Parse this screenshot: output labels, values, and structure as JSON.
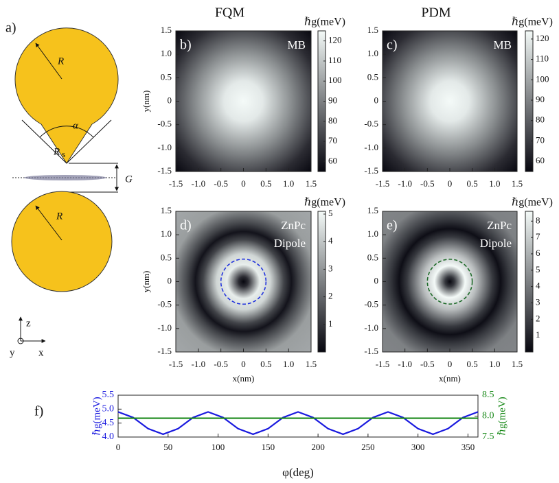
{
  "panel_a": {
    "label": "a)",
    "radius_top": "R",
    "angle": "α",
    "tip_radius": "R",
    "tip_radius_sub": "s",
    "gap": "G",
    "radius_bottom": "R",
    "axes": {
      "z": "z",
      "x": "x",
      "y": "y"
    }
  },
  "chart_data": [
    {
      "type": "heatmap",
      "label": "b)",
      "column_title": "FQM",
      "colorbar_label": "ℏg(meV)",
      "annotation": [
        "MB"
      ],
      "ylabel": "y(nm)",
      "xlim": [
        -1.5,
        1.5
      ],
      "ylim": [
        -1.5,
        1.5
      ],
      "xticks": [
        -1.5,
        {
          "value": -1,
          "label": "-1.0"
        },
        -0.5,
        0,
        0.5,
        {
          "value": 1,
          "label": "1.0"
        },
        1.5
      ],
      "yticks": [
        -1.5,
        {
          "value": -1,
          "label": "-1.0"
        },
        -0.5,
        0,
        0.5,
        {
          "value": 1,
          "label": "1.0"
        },
        1.5
      ],
      "clim": [
        55,
        125
      ],
      "cticks": [
        60,
        70,
        80,
        90,
        100,
        110,
        120
      ],
      "colormap": [
        "#07070f",
        "#f4faf8"
      ]
    },
    {
      "type": "heatmap",
      "label": "c)",
      "column_title": "PDM",
      "colorbar_label": "ℏg(meV)",
      "annotation": [
        "MB"
      ],
      "xlim": [
        -1.5,
        1.5
      ],
      "ylim": [
        -1.5,
        1.5
      ],
      "xticks": [
        -1.5,
        {
          "value": -1,
          "label": "-1.0"
        },
        -0.5,
        0,
        0.5,
        {
          "value": 1,
          "label": "1.0"
        },
        1.5
      ],
      "yticks": [
        -1.5,
        {
          "value": -1,
          "label": "-1.0"
        },
        -0.5,
        0,
        0.5,
        {
          "value": 1,
          "label": "1.0"
        },
        1.5
      ],
      "clim": [
        55,
        124
      ],
      "cticks": [
        60,
        70,
        80,
        90,
        100,
        110,
        120
      ],
      "colormap": [
        "#07070f",
        "#f4faf8"
      ]
    },
    {
      "type": "heatmap",
      "label": "d)",
      "colorbar_label": "ℏg(meV)",
      "annotation": [
        "ZnPc",
        "Dipole"
      ],
      "ylabel": "y(nm)",
      "xlabel": "x(nm)",
      "xlim": [
        -1.5,
        1.5
      ],
      "ylim": [
        -1.5,
        1.5
      ],
      "xticks": [
        -1.5,
        {
          "value": -1,
          "label": "-1.0"
        },
        -0.5,
        0,
        0.5,
        {
          "value": 1,
          "label": "1.0"
        },
        1.5
      ],
      "yticks": [
        -1.5,
        {
          "value": -1,
          "label": "-1.0"
        },
        -0.5,
        0,
        0.5,
        {
          "value": 1,
          "label": "1.0"
        },
        1.5
      ],
      "clim": [
        0,
        5.1
      ],
      "cticks": [
        1,
        2,
        3,
        4,
        5
      ],
      "colormap": [
        "#07070f",
        "#f4faf8"
      ],
      "circle_radius": 0.5,
      "circle_color": "#2233dd"
    },
    {
      "type": "heatmap",
      "label": "e)",
      "colorbar_label": "ℏg(meV)",
      "annotation": [
        "ZnPc",
        "Dipole"
      ],
      "xlabel": "x(nm)",
      "xlim": [
        -1.5,
        1.5
      ],
      "ylim": [
        -1.5,
        1.5
      ],
      "xticks": [
        -1.5,
        {
          "value": -1,
          "label": "-1.0"
        },
        -0.5,
        0,
        0.5,
        {
          "value": 1,
          "label": "1.0"
        },
        1.5
      ],
      "yticks": [
        -1.5,
        {
          "value": -1,
          "label": "-1.0"
        },
        -0.5,
        0,
        0.5,
        {
          "value": 1,
          "label": "1.0"
        },
        1.5
      ],
      "clim": [
        0,
        8.6
      ],
      "cticks": [
        1,
        2,
        3,
        4,
        5,
        6,
        7,
        8
      ],
      "colormap": [
        "#07070f",
        "#f4faf8"
      ],
      "circle_radius": 0.5,
      "circle_color": "#1f6b2a"
    },
    {
      "type": "line",
      "label": "f)",
      "xlabel": "φ(deg)",
      "ylabel": "ℏg(meV)",
      "y2label": "ℏg(meV)",
      "x": [
        0,
        15,
        30,
        45,
        60,
        75,
        90,
        105,
        120,
        135,
        150,
        165,
        180,
        195,
        210,
        225,
        240,
        255,
        270,
        285,
        300,
        315,
        330,
        345,
        360
      ],
      "series": [
        {
          "color": "#1a1adf",
          "axis": "y",
          "values": [
            4.9,
            4.7,
            4.3,
            4.1,
            4.3,
            4.7,
            4.9,
            4.7,
            4.3,
            4.1,
            4.3,
            4.7,
            4.9,
            4.7,
            4.3,
            4.1,
            4.3,
            4.7,
            4.9,
            4.7,
            4.3,
            4.1,
            4.3,
            4.7,
            4.9
          ]
        },
        {
          "color": "#1a8a1a",
          "axis": "y2",
          "values": [
            7.95,
            7.95,
            7.95,
            7.95,
            7.95,
            7.95,
            7.95,
            7.95,
            7.95,
            7.95,
            7.95,
            7.95,
            7.95,
            7.95,
            7.95,
            7.95,
            7.95,
            7.95,
            7.95,
            7.95,
            7.95,
            7.95,
            7.95,
            7.95,
            7.95
          ]
        }
      ],
      "xlim": [
        0,
        360
      ],
      "xticks": [
        0,
        50,
        100,
        150,
        200,
        250,
        300,
        350
      ],
      "ylim": [
        4,
        5.5
      ],
      "yticks": [
        {
          "value": 4,
          "label": "4.0"
        },
        4.5,
        {
          "value": 5,
          "label": "5.0"
        },
        5.5
      ],
      "y2lim": [
        7.5,
        8.5
      ],
      "y2ticks": [
        7.5,
        {
          "value": 8,
          "label": "8.0"
        },
        8.5
      ]
    }
  ]
}
